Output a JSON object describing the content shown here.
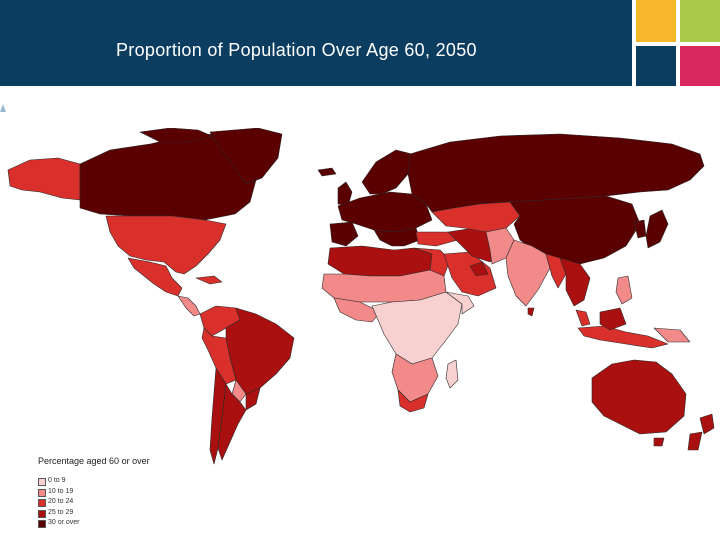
{
  "slide": {
    "title": "Proportion of Population Over Age 60, 2050",
    "brand_colors": [
      "#0b3d60",
      "#f7b72a",
      "#a8c94a",
      "#d8265e"
    ]
  },
  "map": {
    "ocean_color": "#ffffff",
    "border_color": "#2a2a2a",
    "legend": {
      "title": "Percentage aged 60 or over",
      "classes": [
        {
          "label": "0 to 9",
          "color": "#f8d0d0"
        },
        {
          "label": "10 to 19",
          "color": "#f28a8a"
        },
        {
          "label": "20 to 24",
          "color": "#d9302c"
        },
        {
          "label": "25 to 29",
          "color": "#aa1010"
        },
        {
          "label": "30 or over",
          "color": "#5a0000"
        }
      ]
    }
  }
}
